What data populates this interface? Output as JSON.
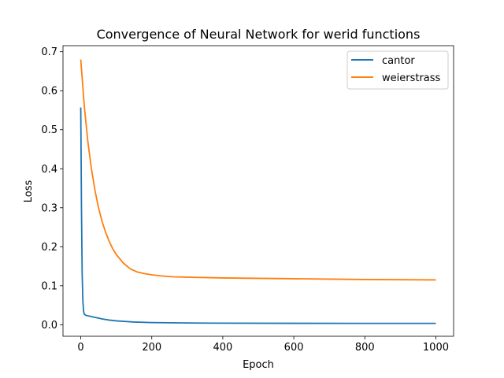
{
  "chart_data": {
    "type": "line",
    "title": "Convergence of Neural Network for werid functions",
    "xlabel": "Epoch",
    "ylabel": "Loss",
    "xlim": [
      -50,
      1050
    ],
    "ylim": [
      -0.0295,
      0.7155
    ],
    "xticks": [
      0,
      200,
      400,
      600,
      800,
      1000
    ],
    "xtick_labels": [
      "0",
      "200",
      "400",
      "600",
      "800",
      "1000"
    ],
    "yticks": [
      0.0,
      0.1,
      0.2,
      0.3,
      0.4,
      0.5,
      0.6,
      0.7
    ],
    "ytick_labels": [
      "0.0",
      "0.1",
      "0.2",
      "0.3",
      "0.4",
      "0.5",
      "0.6",
      "0.7"
    ],
    "grid": false,
    "legend_position": "top-right",
    "series": [
      {
        "name": "cantor",
        "color": "#1f77b4",
        "x": [
          0,
          2,
          4,
          6,
          8,
          10,
          15,
          20,
          30,
          40,
          60,
          80,
          100,
          150,
          200,
          300,
          400,
          600,
          800,
          1000
        ],
        "y": [
          0.557,
          0.3,
          0.13,
          0.06,
          0.035,
          0.027,
          0.024,
          0.023,
          0.021,
          0.019,
          0.015,
          0.012,
          0.01,
          0.007,
          0.0055,
          0.0045,
          0.004,
          0.0037,
          0.0036,
          0.0035
        ]
      },
      {
        "name": "weierstrass",
        "color": "#ff7f0e",
        "x": [
          0,
          10,
          20,
          30,
          40,
          50,
          60,
          70,
          80,
          90,
          100,
          120,
          140,
          160,
          180,
          200,
          230,
          260,
          300,
          350,
          400,
          500,
          600,
          700,
          800,
          900,
          1000
        ],
        "y": [
          0.68,
          0.56,
          0.47,
          0.4,
          0.345,
          0.3,
          0.265,
          0.237,
          0.214,
          0.195,
          0.18,
          0.158,
          0.143,
          0.135,
          0.131,
          0.128,
          0.125,
          0.123,
          0.122,
          0.121,
          0.12,
          0.119,
          0.118,
          0.117,
          0.116,
          0.1155,
          0.115
        ]
      }
    ]
  }
}
